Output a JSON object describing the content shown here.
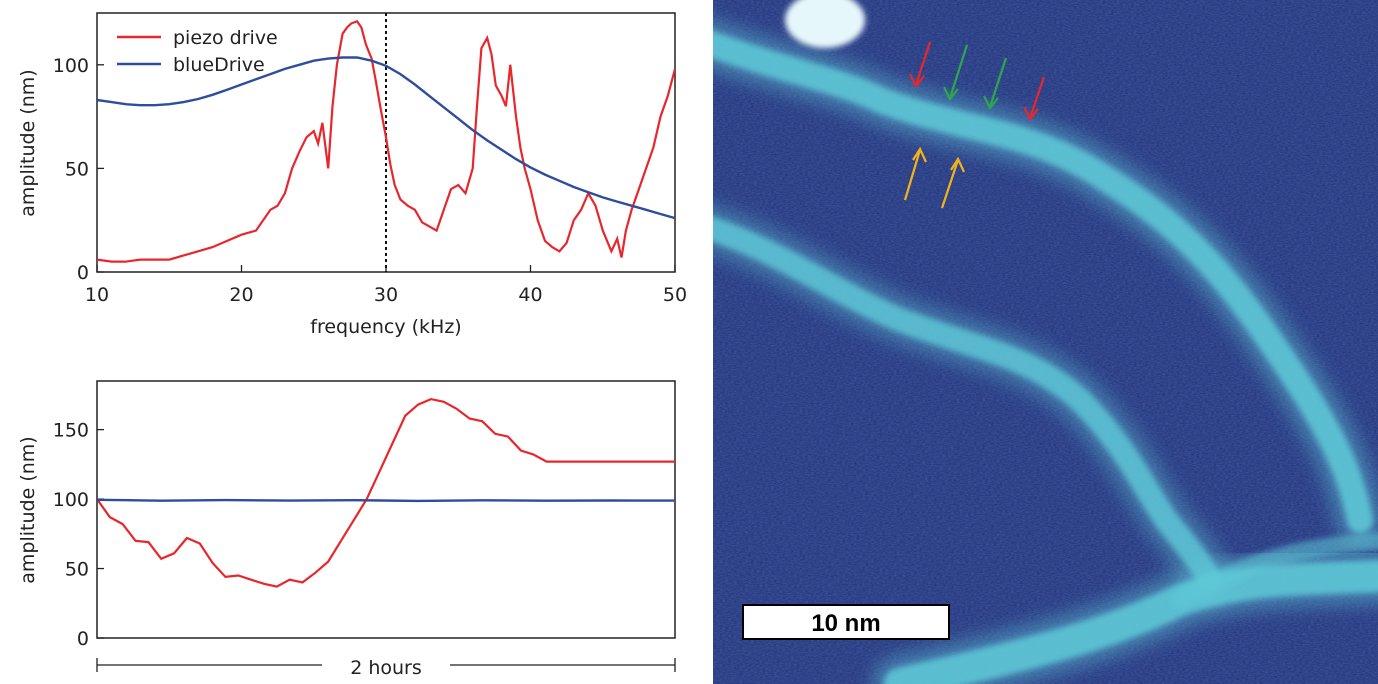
{
  "colors": {
    "piezo": "#e8262b",
    "blue": "#2f4d9c",
    "afm_background": "#1e2f7a",
    "afm_fiber": "#5ec9d8",
    "arrow_red": "#e8262b",
    "arrow_green": "#2aa84a",
    "arrow_yellow": "#f2b21c"
  },
  "chart_data": [
    {
      "type": "line",
      "xlabel": "frequency (kHz)",
      "ylabel": "amplitude (nm)",
      "xlim": [
        10,
        50
      ],
      "ylim": [
        0,
        125
      ],
      "xticks": [
        "10",
        "20",
        "30",
        "40",
        "50"
      ],
      "yticks": [
        "0",
        "50",
        "100"
      ],
      "legend_placement": "top-left",
      "marker_line": {
        "x": 30,
        "style": "dotted"
      },
      "series": [
        {
          "name": "piezo drive",
          "color": "#e8262b",
          "x": [
            10,
            11,
            12,
            13,
            14,
            15,
            16,
            17,
            18,
            19,
            20,
            21,
            22,
            22.5,
            23,
            23.5,
            24,
            24.5,
            25,
            25.3,
            25.6,
            26,
            26.3,
            26.6,
            27,
            27.3,
            27.6,
            28,
            28.3,
            28.6,
            29,
            29.3,
            29.6,
            30,
            30.3,
            30.6,
            31,
            31.5,
            32,
            32.5,
            33,
            33.5,
            34,
            34.5,
            35,
            35.5,
            36,
            36.3,
            36.6,
            37,
            37.3,
            37.6,
            38,
            38.3,
            38.6,
            39,
            39.3,
            39.6,
            40,
            40.5,
            41,
            41.5,
            42,
            42.5,
            43,
            43.5,
            44,
            44.5,
            45,
            45.3,
            45.6,
            46,
            46.3,
            46.6,
            47,
            47.5,
            48,
            48.5,
            49,
            49.5,
            50
          ],
          "y": [
            6,
            5,
            5,
            6,
            6,
            6,
            8,
            10,
            12,
            15,
            18,
            20,
            30,
            32,
            38,
            50,
            58,
            65,
            68,
            62,
            72,
            50,
            80,
            100,
            115,
            118,
            120,
            121,
            118,
            110,
            103,
            92,
            80,
            65,
            52,
            42,
            35,
            32,
            30,
            24,
            22,
            20,
            30,
            40,
            42,
            38,
            50,
            80,
            108,
            113,
            105,
            90,
            85,
            80,
            100,
            75,
            60,
            50,
            40,
            25,
            15,
            12,
            10,
            14,
            25,
            30,
            38,
            32,
            20,
            15,
            10,
            16,
            7,
            20,
            30,
            40,
            50,
            60,
            75,
            85,
            98
          ]
        },
        {
          "name": "blueDrive",
          "color": "#2f4d9c",
          "x": [
            10,
            11,
            12,
            13,
            14,
            15,
            16,
            17,
            18,
            19,
            20,
            21,
            22,
            23,
            24,
            25,
            26,
            27,
            28,
            29,
            30,
            31,
            32,
            33,
            34,
            35,
            36,
            37,
            38,
            39,
            40,
            41,
            42,
            43,
            44,
            45,
            46,
            47,
            48,
            49,
            50
          ],
          "y": [
            83,
            82,
            81,
            80.5,
            80.5,
            81,
            82,
            83.5,
            85.5,
            88,
            90.5,
            93,
            95.5,
            98,
            100,
            102,
            103,
            103.5,
            103.5,
            102,
            99.5,
            95.5,
            90.5,
            85,
            79.5,
            74,
            68.5,
            63.5,
            59,
            54.5,
            50.5,
            47,
            44,
            41,
            38.5,
            36,
            34,
            32,
            30,
            28,
            26
          ]
        }
      ]
    },
    {
      "type": "line",
      "xlabel": "2 hours",
      "ylabel": "amplitude (nm)",
      "ylim": [
        0,
        185
      ],
      "yticks": [
        "0",
        "50",
        "100",
        "150"
      ],
      "x_is_time_span": true,
      "series": [
        {
          "name": "",
          "color": "#e8262b",
          "x": [
            0,
            1,
            2,
            3,
            4,
            5,
            6,
            7,
            8,
            9,
            10,
            11,
            12,
            13,
            14,
            15,
            16,
            17,
            18,
            19,
            20,
            21,
            22,
            23,
            24,
            25,
            26,
            27,
            28,
            29,
            30,
            31,
            32,
            33,
            34,
            35,
            36,
            37,
            38,
            39,
            40,
            41,
            42,
            43,
            44,
            45
          ],
          "y": [
            100,
            87,
            82,
            70,
            69,
            57,
            61,
            72,
            68,
            54,
            44,
            45,
            42,
            39,
            37,
            42,
            40,
            47,
            55,
            70,
            85,
            100,
            120,
            140,
            160,
            168,
            172,
            170,
            165,
            158,
            156,
            147,
            145,
            135,
            132,
            127,
            127,
            127,
            127,
            127,
            127,
            127,
            127,
            127,
            127,
            127
          ]
        },
        {
          "name": "",
          "color": "#2f4d9c",
          "x": [
            0,
            5,
            10,
            15,
            20,
            25,
            30,
            35,
            40,
            45
          ],
          "y": [
            99.5,
            98.8,
            99.3,
            98.9,
            99.2,
            98.7,
            99.1,
            98.8,
            99.0,
            98.9
          ]
        }
      ]
    }
  ],
  "afm_image": {
    "scale_bar_label": "10 nm"
  }
}
